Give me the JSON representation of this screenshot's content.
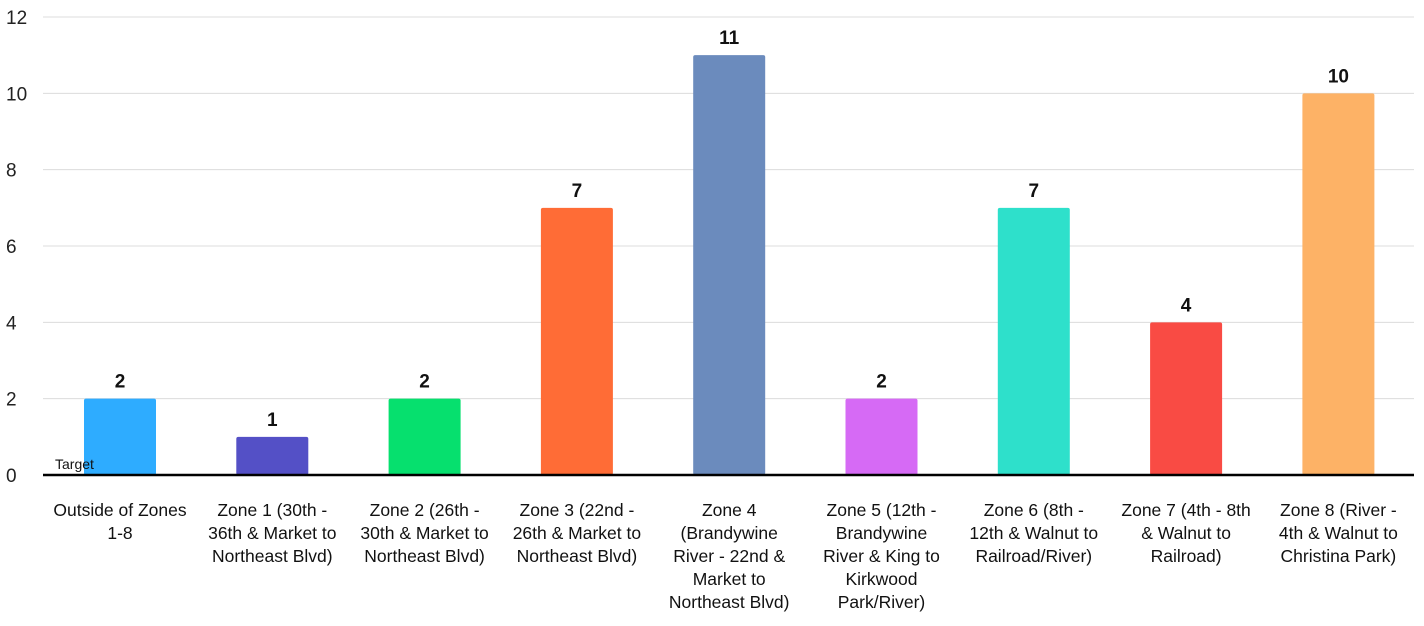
{
  "chart_data": {
    "type": "bar",
    "title": "",
    "xlabel": "",
    "ylabel": "",
    "ylim": [
      0,
      12
    ],
    "yticks": [
      0,
      2,
      4,
      6,
      8,
      10,
      12
    ],
    "grid": true,
    "legend": "none",
    "categories": [
      [
        "Outside of Zones",
        "1-8"
      ],
      [
        "Zone 1 (30th -",
        "36th & Market to",
        "Northeast Blvd)"
      ],
      [
        "Zone 2 (26th -",
        "30th & Market to",
        "Northeast Blvd)"
      ],
      [
        "Zone 3 (22nd -",
        "26th & Market to",
        "Northeast Blvd)"
      ],
      [
        "Zone 4",
        "(Brandywine",
        "River - 22nd &",
        "Market to",
        "Northeast Blvd)"
      ],
      [
        "Zone 5 (12th -",
        "Brandywine",
        "River & King to",
        "Kirkwood",
        "Park/River)"
      ],
      [
        "Zone 6 (8th -",
        "12th & Walnut to",
        "Railroad/River)"
      ],
      [
        "Zone 7 (4th - 8th",
        "& Walnut to",
        "Railroad)"
      ],
      [
        "Zone 8 (River -",
        "4th & Walnut to",
        "Christina Park)"
      ]
    ],
    "values": [
      2,
      1,
      2,
      7,
      11,
      2,
      7,
      4,
      10
    ],
    "colors": [
      "#2eacff",
      "#5450c6",
      "#06e06e",
      "#ff6c36",
      "#6b8bbd",
      "#d66af5",
      "#2ee0cb",
      "#f94b44",
      "#fdb266"
    ],
    "annotation": "Target"
  }
}
